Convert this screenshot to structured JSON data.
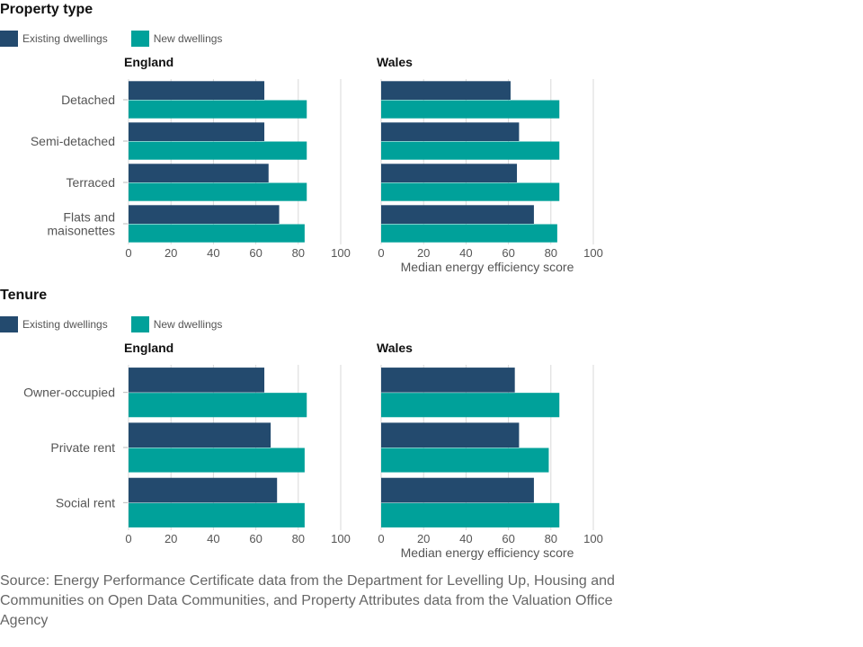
{
  "colors": {
    "existing": "#234a6e",
    "new": "#00a19a",
    "grid": "#d9d9d9",
    "text": "#555555"
  },
  "legend": {
    "existing_label": "Existing dwellings",
    "new_label": "New dwellings"
  },
  "sections": [
    {
      "title": "Property type",
      "england_title": "England",
      "wales_title": "Wales"
    },
    {
      "title": "Tenure",
      "england_title": "England",
      "wales_title": "Wales"
    }
  ],
  "source": "Source: Energy Performance Certificate data from the Department for Levelling Up, Housing and Communities on Open Data Communities, and Property Attributes data from the Valuation Office Agency",
  "chart_data": [
    {
      "type": "bar",
      "orientation": "horizontal",
      "title": "Property type",
      "panel": "England",
      "categories": [
        [
          "Detached"
        ],
        [
          "Semi-detached"
        ],
        [
          "Terraced"
        ],
        [
          "Flats and",
          "maisonettes"
        ]
      ],
      "series": [
        {
          "name": "Existing dwellings",
          "values": [
            64,
            64,
            66,
            71
          ]
        },
        {
          "name": "New dwellings",
          "values": [
            84,
            84,
            84,
            83
          ]
        }
      ],
      "xlim": [
        0,
        100
      ],
      "xticks": [
        0,
        20,
        40,
        60,
        80,
        100
      ],
      "xlabel": "",
      "grid": true
    },
    {
      "type": "bar",
      "orientation": "horizontal",
      "title": "Property type",
      "panel": "Wales",
      "categories": [
        [
          "Detached"
        ],
        [
          "Semi-detached"
        ],
        [
          "Terraced"
        ],
        [
          "Flats and",
          "maisonettes"
        ]
      ],
      "series": [
        {
          "name": "Existing dwellings",
          "values": [
            61,
            65,
            64,
            72
          ]
        },
        {
          "name": "New dwellings",
          "values": [
            84,
            84,
            84,
            83
          ]
        }
      ],
      "xlim": [
        0,
        100
      ],
      "xticks": [
        0,
        20,
        40,
        60,
        80,
        100
      ],
      "xlabel": "Median energy efficiency score",
      "grid": true
    },
    {
      "type": "bar",
      "orientation": "horizontal",
      "title": "Tenure",
      "panel": "England",
      "categories": [
        [
          "Owner-occupied"
        ],
        [
          "Private rent"
        ],
        [
          "Social rent"
        ]
      ],
      "series": [
        {
          "name": "Existing dwellings",
          "values": [
            64,
            67,
            70
          ]
        },
        {
          "name": "New dwellings",
          "values": [
            84,
            83,
            83
          ]
        }
      ],
      "xlim": [
        0,
        100
      ],
      "xticks": [
        0,
        20,
        40,
        60,
        80,
        100
      ],
      "xlabel": "",
      "grid": true
    },
    {
      "type": "bar",
      "orientation": "horizontal",
      "title": "Tenure",
      "panel": "Wales",
      "categories": [
        [
          "Owner-occupied"
        ],
        [
          "Private rent"
        ],
        [
          "Social rent"
        ]
      ],
      "series": [
        {
          "name": "Existing dwellings",
          "values": [
            63,
            65,
            72
          ]
        },
        {
          "name": "New dwellings",
          "values": [
            84,
            79,
            84
          ]
        }
      ],
      "xlim": [
        0,
        100
      ],
      "xticks": [
        0,
        20,
        40,
        60,
        80,
        100
      ],
      "xlabel": "Median energy efficiency score",
      "grid": true
    }
  ]
}
